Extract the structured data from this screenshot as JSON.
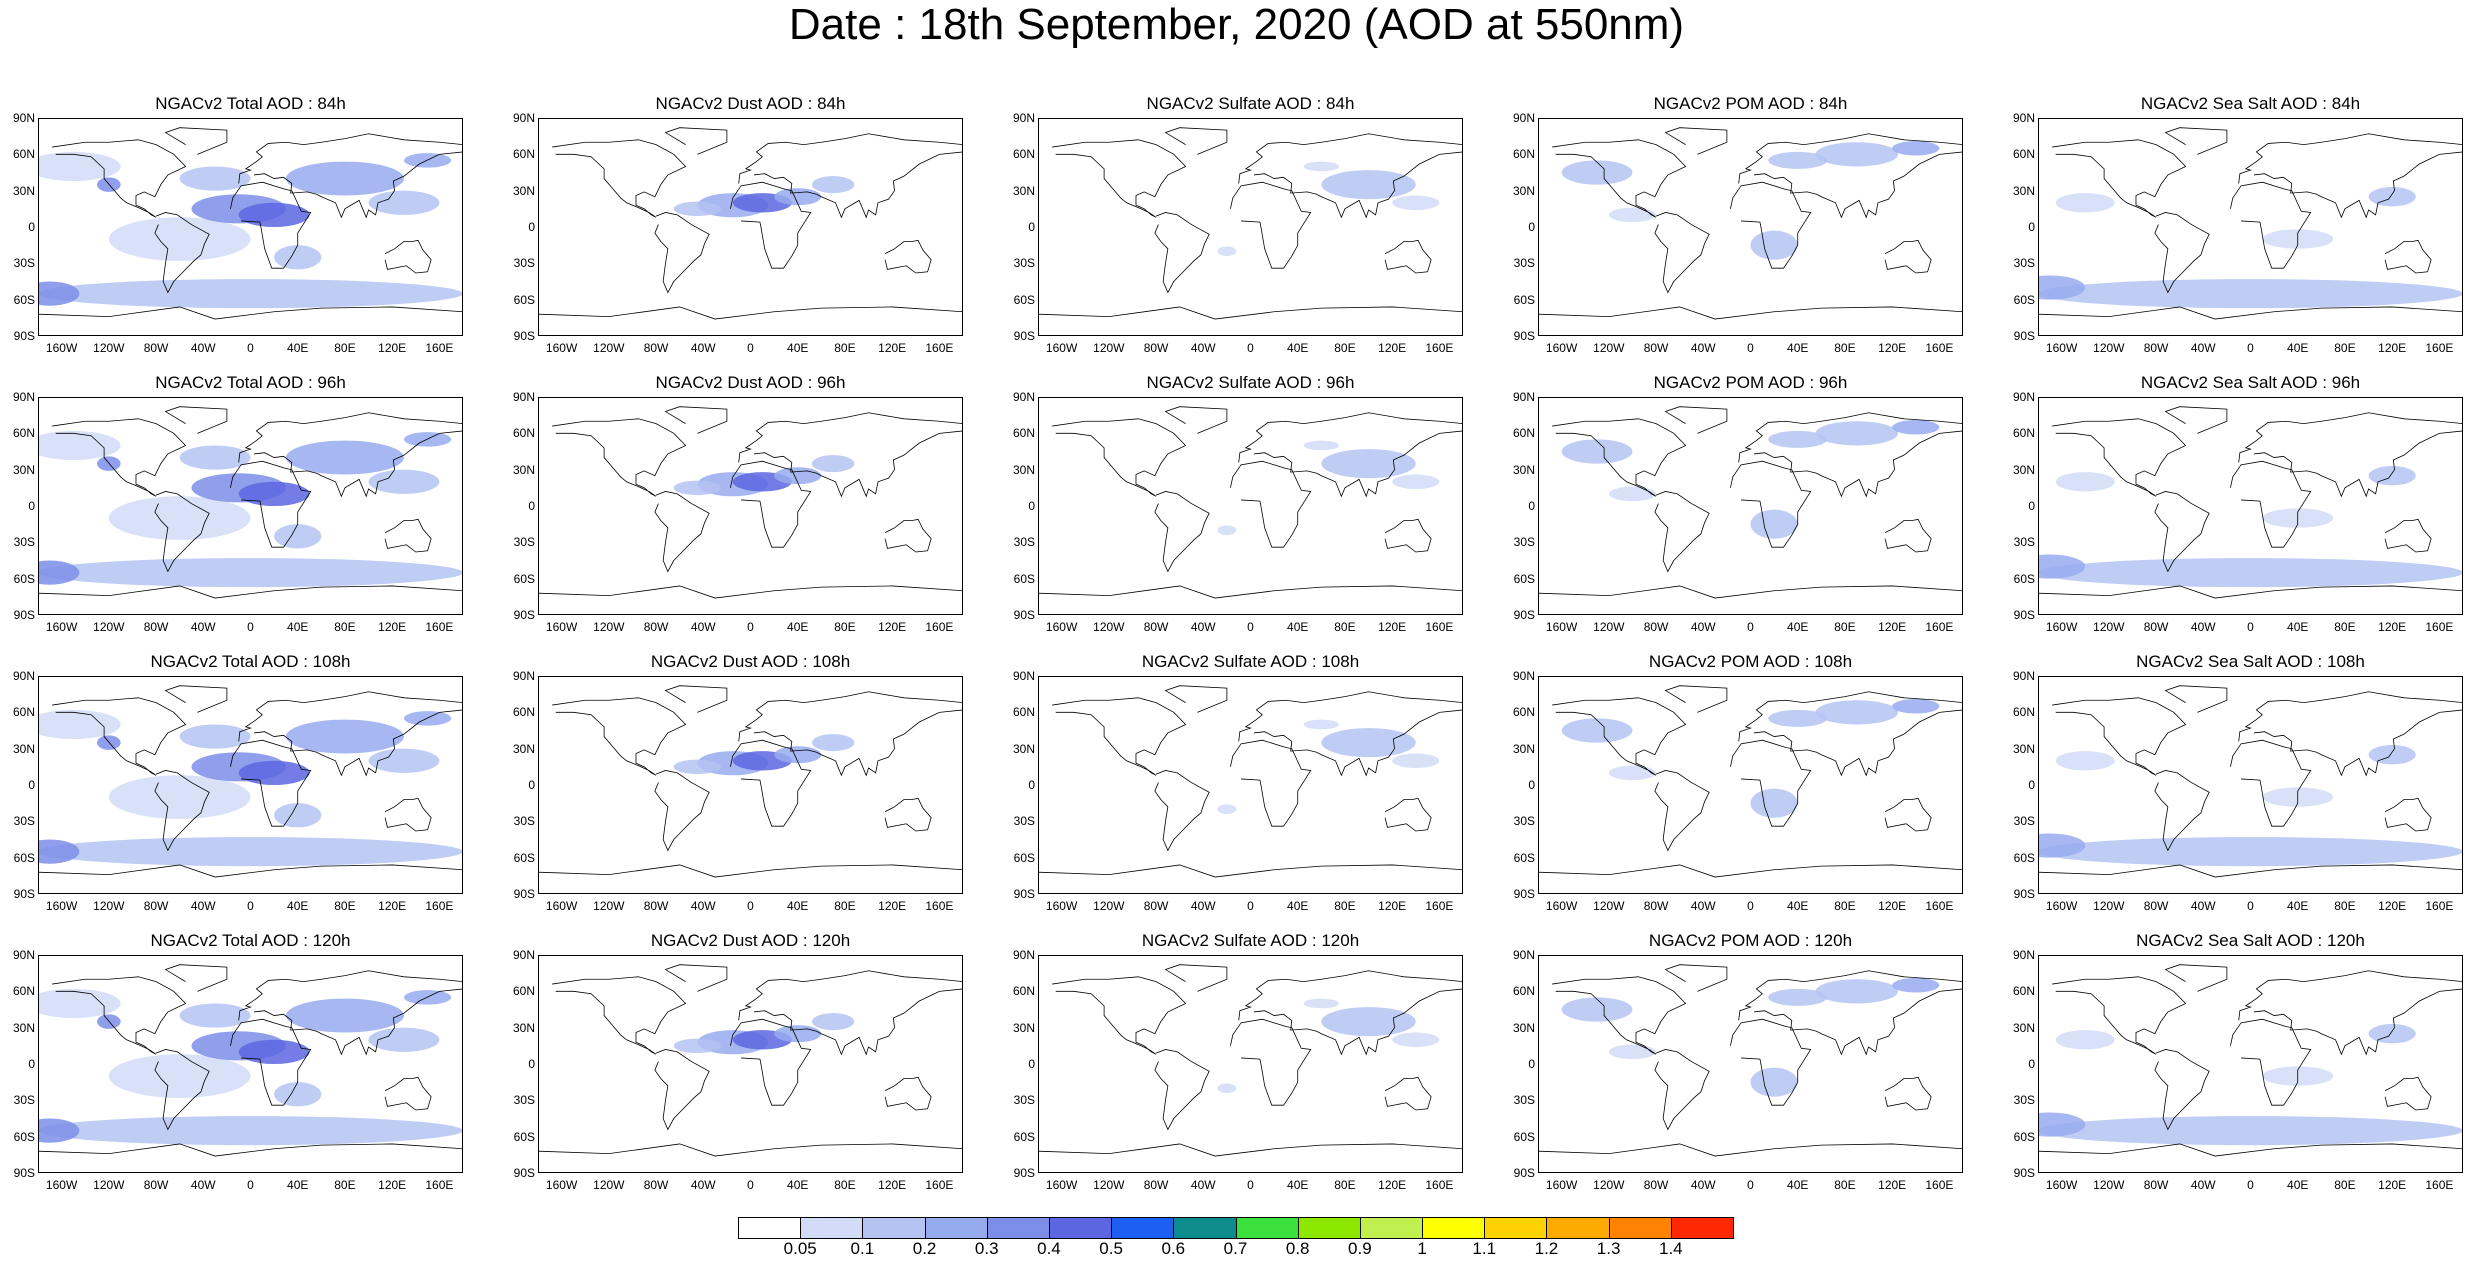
{
  "title": "Date : 18th September, 2020 (AOD at 550nm)",
  "panels": [
    [
      "NGACv2 Total AOD : 84h",
      "NGACv2 Dust AOD : 84h",
      "NGACv2 Sulfate AOD : 84h",
      "NGACv2 POM AOD : 84h",
      "NGACv2 Sea Salt AOD : 84h"
    ],
    [
      "NGACv2 Total AOD : 96h",
      "NGACv2 Dust AOD : 96h",
      "NGACv2 Sulfate AOD : 96h",
      "NGACv2 POM AOD : 96h",
      "NGACv2 Sea Salt AOD : 96h"
    ],
    [
      "NGACv2 Total AOD : 108h",
      "NGACv2 Dust AOD : 108h",
      "NGACv2 Sulfate AOD : 108h",
      "NGACv2 POM AOD : 108h",
      "NGACv2 Sea Salt AOD : 108h"
    ],
    [
      "NGACv2 Total AOD : 120h",
      "NGACv2 Dust AOD : 120h",
      "NGACv2 Sulfate AOD : 120h",
      "NGACv2 POM AOD : 120h",
      "NGACv2 Sea Salt  AOD : 120h"
    ]
  ],
  "lat_labels": [
    "90N",
    "60N",
    "30N",
    "0",
    "30S",
    "60S",
    "90S"
  ],
  "lon_labels": [
    "160W",
    "120W",
    "80W",
    "40W",
    "0",
    "40E",
    "80E",
    "120E",
    "160E"
  ],
  "colorbar": {
    "ticks": [
      "0.05",
      "0.1",
      "0.2",
      "0.3",
      "0.4",
      "0.5",
      "0.6",
      "0.7",
      "0.8",
      "0.9",
      "1",
      "1.1",
      "1.2",
      "1.3",
      "1.4"
    ],
    "colors": [
      "#ffffff",
      "#d2dcf8",
      "#b4c3f2",
      "#96aaee",
      "#7d8ee8",
      "#5c66e0",
      "#1d5ff0",
      "#0e8c8c",
      "#3ce03c",
      "#8ce800",
      "#c0f050",
      "#ffff00",
      "#ffd200",
      "#ffaa00",
      "#ff8200",
      "#ff2800"
    ]
  }
}
